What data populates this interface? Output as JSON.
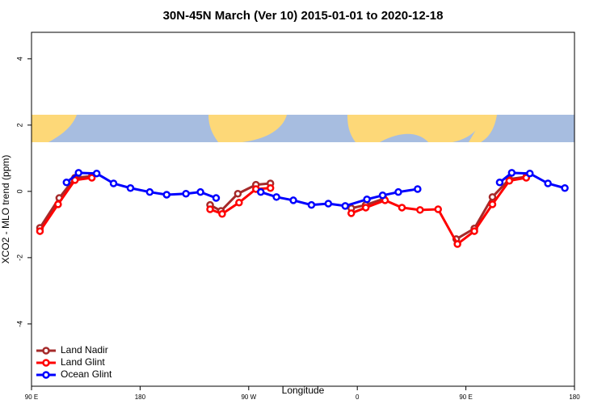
{
  "chart_data": {
    "type": "line",
    "title": "30N-45N March (Ver 10)   2015-01-01 to 2020-12-18",
    "x_label": "Longitude",
    "y_label": "XCO2 - MLO trend (ppm)",
    "xlim": [
      90,
      540
    ],
    "ylim": [
      -5.88,
      4.8
    ],
    "xticks": [
      {
        "value": 90,
        "label": "90 E"
      },
      {
        "value": 180,
        "label": "180"
      },
      {
        "value": 270,
        "label": "90 W"
      },
      {
        "value": 360,
        "label": "0"
      },
      {
        "value": 450,
        "label": "90 E"
      },
      {
        "value": 540,
        "label": "180"
      }
    ],
    "yticks": [
      4,
      2,
      0,
      -2,
      -4
    ],
    "legend": "bottom-left",
    "series": [
      {
        "name": "Land Nadir",
        "color": "#a52a2a",
        "x": [
          97,
          113,
          126,
          140,
          null,
          238,
          247,
          261,
          276,
          288,
          null,
          355,
          367,
          382,
          null,
          442,
          457,
          472,
          486,
          500
        ],
        "values": [
          -1.1,
          -0.2,
          0.41,
          0.46,
          null,
          -0.41,
          -0.59,
          -0.07,
          0.2,
          0.24,
          null,
          -0.51,
          -0.41,
          -0.22,
          null,
          -1.44,
          -1.12,
          -0.17,
          0.37,
          0.44
        ]
      },
      {
        "name": "Land Glint",
        "color": "#ff0000",
        "x": [
          97,
          112,
          126,
          140,
          null,
          238,
          248,
          262,
          276,
          288,
          null,
          355,
          367,
          383,
          397,
          412,
          427,
          443,
          457,
          472,
          486,
          500
        ],
        "values": [
          -1.2,
          -0.39,
          0.34,
          0.41,
          null,
          -0.54,
          -0.68,
          -0.34,
          0.07,
          0.1,
          null,
          -0.66,
          -0.49,
          -0.27,
          -0.49,
          -0.56,
          -0.54,
          -1.59,
          -1.2,
          -0.39,
          0.32,
          0.41
        ]
      },
      {
        "name": "Ocean Glint",
        "color": "#0000ff",
        "x": [
          119,
          129,
          144,
          158,
          172,
          188,
          202,
          218,
          230,
          243,
          null,
          280,
          293,
          307,
          322,
          336,
          350,
          368,
          381,
          394,
          410,
          null,
          478,
          488,
          503,
          518,
          532
        ],
        "values": [
          0.27,
          0.56,
          0.54,
          0.24,
          0.1,
          -0.02,
          -0.1,
          -0.07,
          -0.02,
          -0.2,
          null,
          -0.02,
          -0.17,
          -0.27,
          -0.41,
          -0.37,
          -0.44,
          -0.24,
          -0.12,
          -0.02,
          0.07,
          null,
          0.27,
          0.56,
          0.54,
          0.24,
          0.1
        ]
      }
    ]
  }
}
